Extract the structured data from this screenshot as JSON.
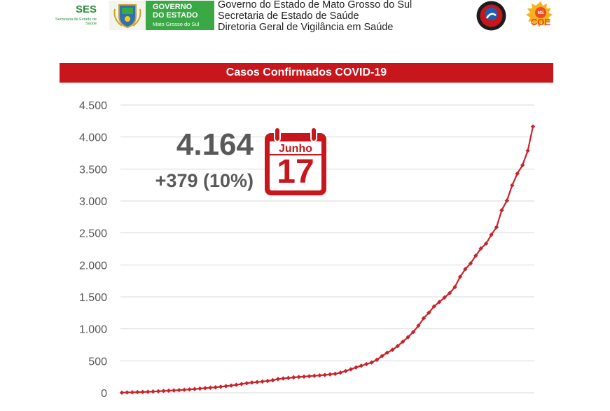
{
  "header": {
    "ses_logo": {
      "title": "SES",
      "subtitle": "Secretaria de Estado de Saúde"
    },
    "gov_logo": {
      "line1": "GOVERNO",
      "line2": "DO ESTADO",
      "line3": "Mato Grosso do Sul"
    },
    "lines": [
      "Governo do Estado de Mato Grosso do Sul",
      "Secretaria de Estado de Saúde",
      "Diretoria Geral de Vigilância em Saúde"
    ],
    "badge_right_text": "COE",
    "badge_right_small": "MS"
  },
  "highlight": {
    "total": "4.164",
    "delta": "+379 (10%)",
    "calendar_month": "Junho",
    "calendar_day": "17"
  },
  "colors": {
    "accent": "#c8161d",
    "line": "#c8242c",
    "text_gray": "#595959",
    "green": "#3aa845"
  },
  "chart_data": {
    "type": "line",
    "title": "Casos Confirmados COVID-19",
    "xlabel": "",
    "ylabel": "",
    "ylim": [
      0,
      4500
    ],
    "yticks": [
      0,
      500,
      1000,
      1500,
      2000,
      2500,
      3000,
      3500,
      4000,
      4500
    ],
    "ytick_labels": [
      "0",
      "500",
      "1.000",
      "1.500",
      "2.000",
      "2.500",
      "3.000",
      "3.500",
      "4.000",
      "4.500"
    ],
    "grid": true,
    "series": [
      {
        "values": [
          2,
          6,
          7,
          10,
          13,
          16,
          20,
          24,
          29,
          33,
          37,
          42,
          47,
          53,
          59,
          66,
          73,
          80,
          86,
          95,
          104,
          113,
          125,
          138,
          150,
          161,
          168,
          176,
          185,
          197,
          215,
          224,
          232,
          241,
          247,
          253,
          259,
          266,
          272,
          279,
          288,
          297,
          315,
          340,
          368,
          397,
          423,
          449,
          474,
          516,
          575,
          627,
          672,
          731,
          799,
          871,
          951,
          1050,
          1166,
          1253,
          1351,
          1420,
          1489,
          1560,
          1653,
          1814,
          1934,
          2022,
          2144,
          2258,
          2334,
          2471,
          2590,
          2855,
          3006,
          3244,
          3428,
          3560,
          3785,
          4164
        ]
      }
    ]
  }
}
